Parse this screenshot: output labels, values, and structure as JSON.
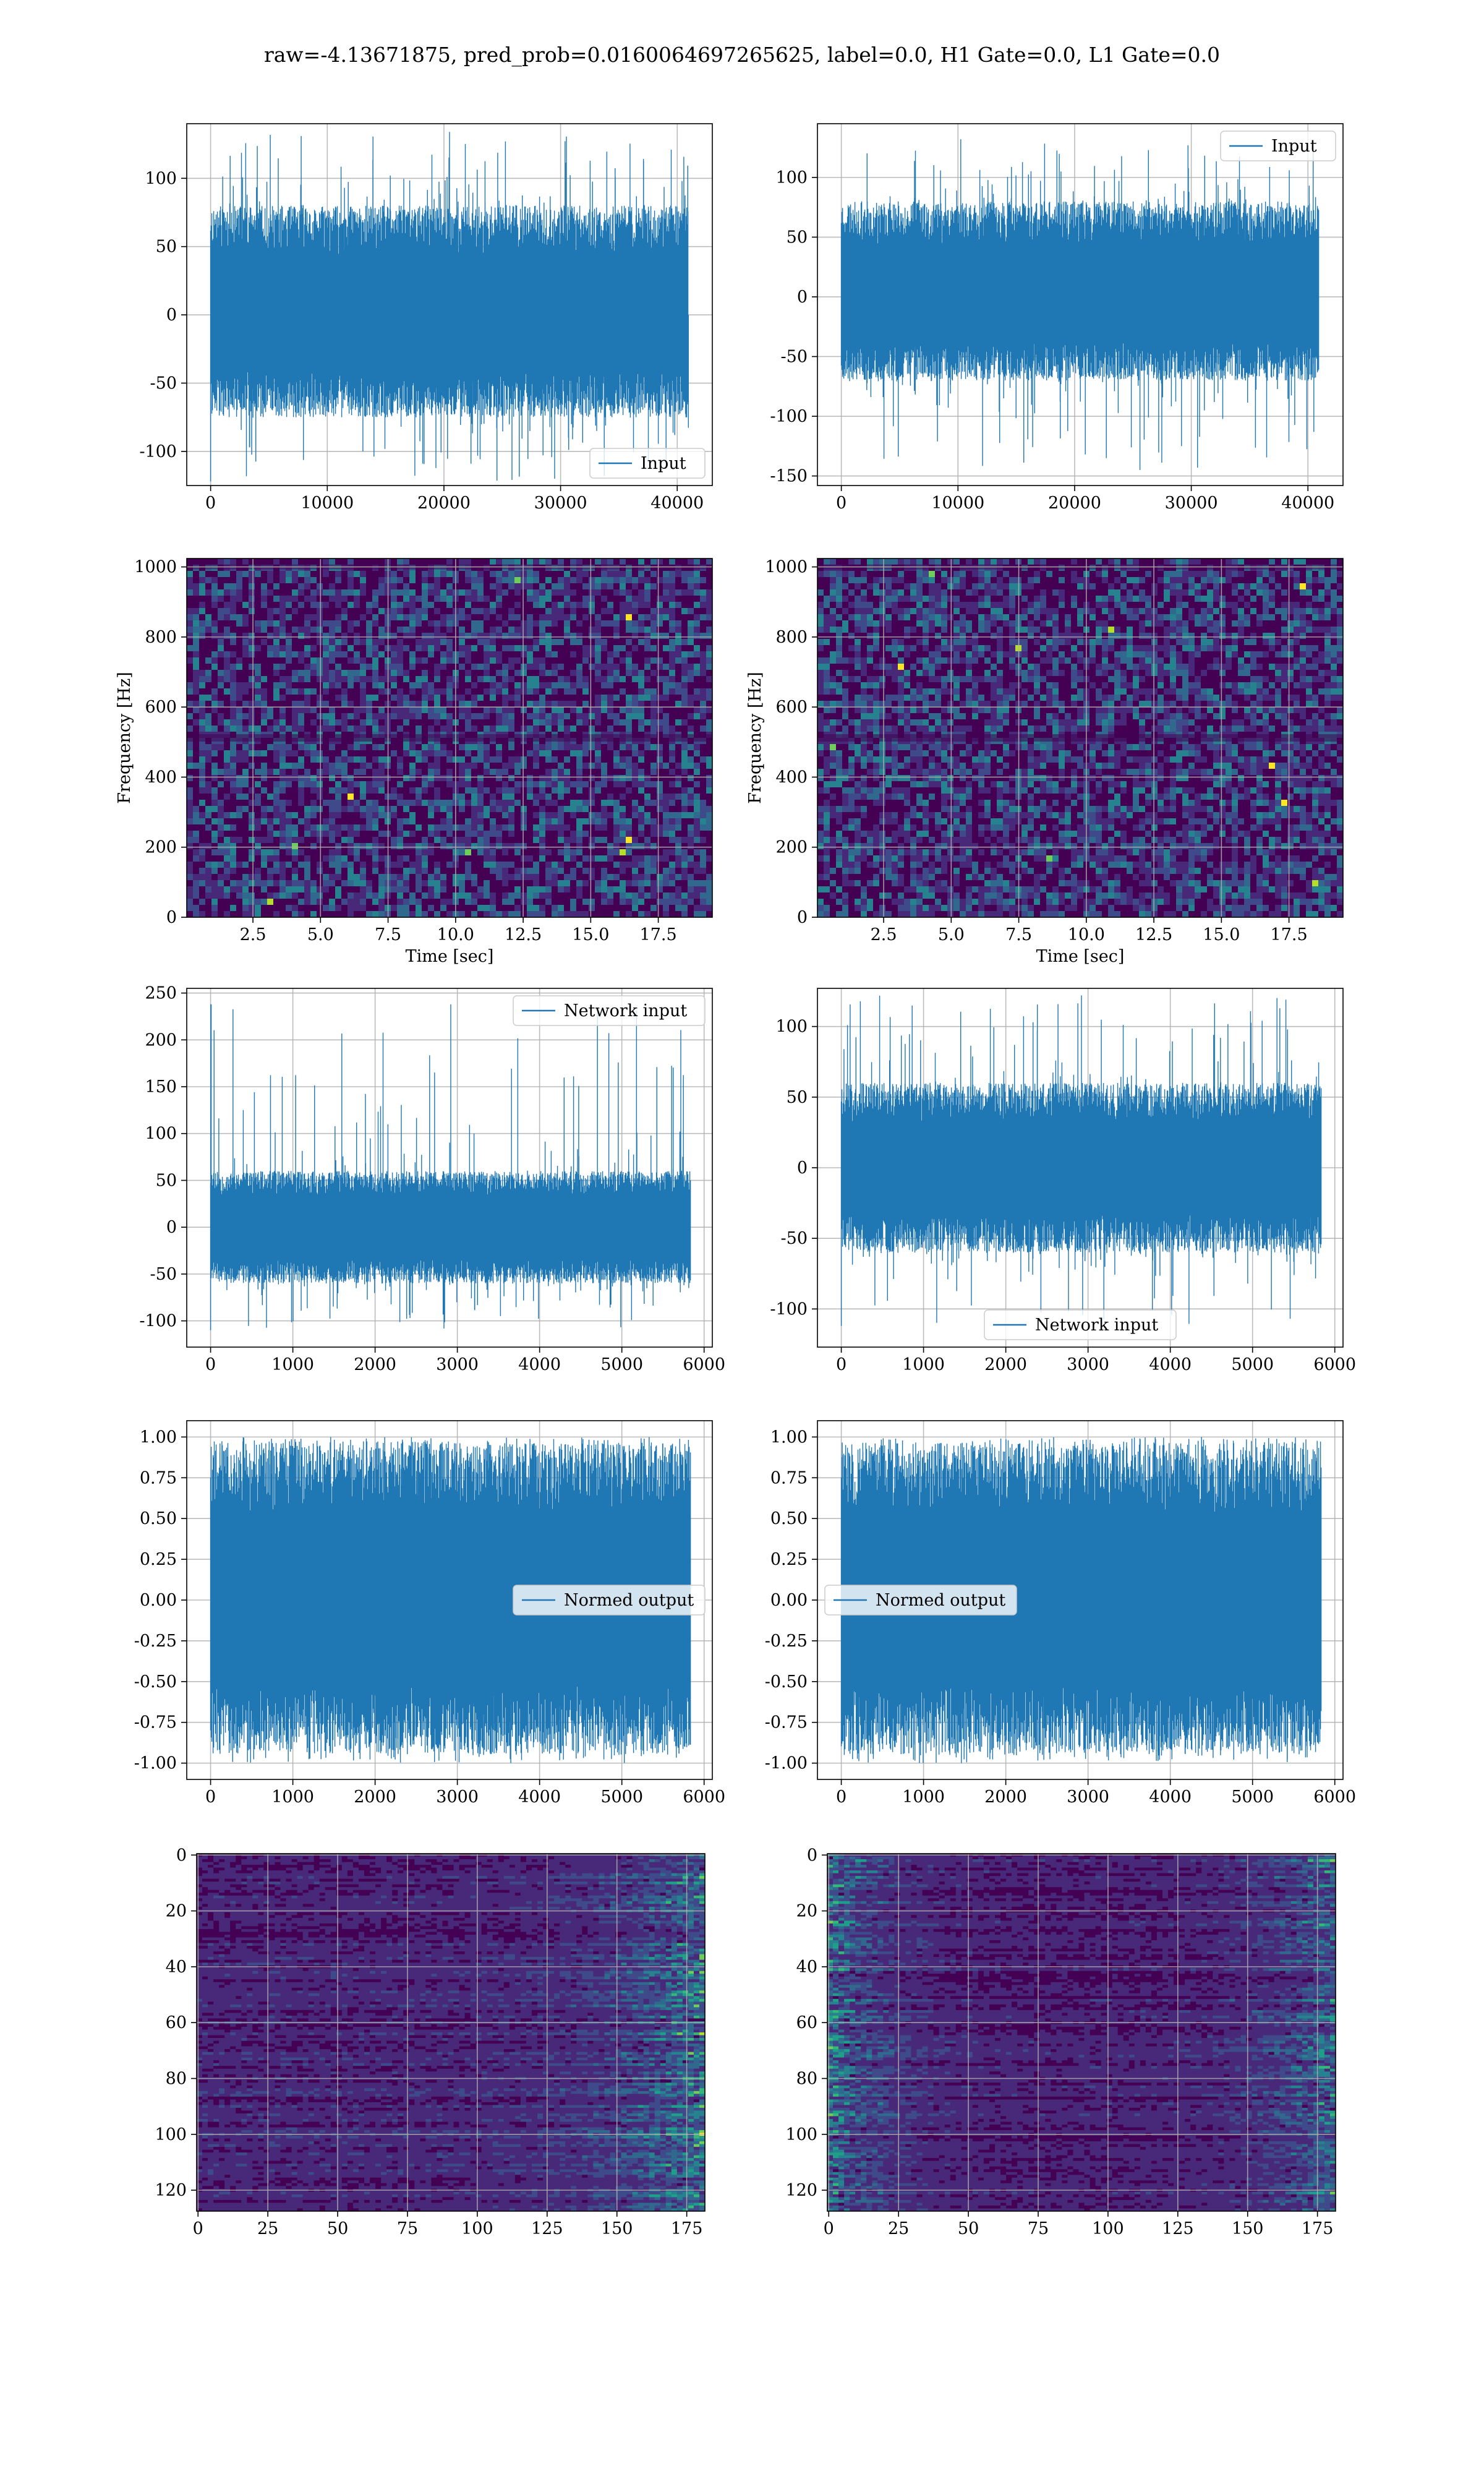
{
  "figure": {
    "suptitle": "raw=-4.13671875, pred_prob=0.0160064697265625, label=0.0, H1 Gate=0.0, L1 Gate=0.0"
  },
  "colors": {
    "line": "#1f77b4",
    "grid": "#b0b0b0",
    "viridis": [
      "#440154",
      "#482878",
      "#3e4a89",
      "#31688e",
      "#26828e",
      "#1f9e89",
      "#35b779",
      "#6ece58",
      "#b5de2b",
      "#fde725"
    ]
  },
  "chart_data": [
    {
      "id": "r1c1",
      "type": "line",
      "title": "",
      "xlabel": "",
      "ylabel": "",
      "xlim": [
        -2048,
        43008
      ],
      "ylim": [
        -125,
        140
      ],
      "xticks": [
        0,
        10000,
        20000,
        30000,
        40000
      ],
      "yticks": [
        -100,
        -50,
        0,
        50,
        100
      ],
      "grid": true,
      "legend": {
        "label": "Input",
        "position": "lower-right"
      },
      "series": [
        {
          "name": "Input",
          "x_range": [
            0,
            40960
          ],
          "baseline": 0,
          "sigma": 25,
          "band": [
            -75,
            80
          ],
          "extreme": [
            -122,
            134
          ]
        }
      ]
    },
    {
      "id": "r1c2",
      "type": "line",
      "title": "",
      "xlabel": "",
      "ylabel": "",
      "xlim": [
        -2048,
        43008
      ],
      "ylim": [
        -158,
        145
      ],
      "xticks": [
        0,
        10000,
        20000,
        30000,
        40000
      ],
      "yticks": [
        -150,
        -100,
        -50,
        0,
        50,
        100
      ],
      "grid": true,
      "legend": {
        "label": "Input",
        "position": "upper-right"
      },
      "series": [
        {
          "name": "Input",
          "x_range": [
            0,
            40960
          ],
          "baseline": 0,
          "sigma": 25,
          "band": [
            -70,
            80
          ],
          "extreme": [
            -145,
            132
          ]
        }
      ]
    },
    {
      "id": "r2c1",
      "type": "heatmap",
      "title": "",
      "xlabel": "Time [sec]",
      "ylabel": "Frequency [Hz]",
      "xlim": [
        0.05,
        19.5
      ],
      "ylim": [
        0,
        1024
      ],
      "xticks": [
        "2.5",
        "5.0",
        "7.5",
        "10.0",
        "12.5",
        "15.0",
        "17.5"
      ],
      "yticks": [
        0,
        200,
        400,
        600,
        800,
        1000
      ],
      "grid": true,
      "description_range": "low-intensity noise spectrogram with sparse bright points"
    },
    {
      "id": "r2c2",
      "type": "heatmap",
      "title": "",
      "xlabel": "Time [sec]",
      "ylabel": "Frequency [Hz]",
      "xlim": [
        0.05,
        19.5
      ],
      "ylim": [
        0,
        1024
      ],
      "xticks": [
        "2.5",
        "5.0",
        "7.5",
        "10.0",
        "12.5",
        "15.0",
        "17.5"
      ],
      "yticks": [
        0,
        200,
        400,
        600,
        800,
        1000
      ],
      "grid": true
    },
    {
      "id": "r3c1",
      "type": "line",
      "title": "",
      "xlabel": "",
      "ylabel": "",
      "xlim": [
        -290,
        6100
      ],
      "ylim": [
        -128,
        255
      ],
      "xticks": [
        0,
        1000,
        2000,
        3000,
        4000,
        5000,
        6000
      ],
      "yticks": [
        -100,
        -50,
        0,
        50,
        100,
        150,
        200,
        250
      ],
      "grid": true,
      "legend": {
        "label": "Network input",
        "position": "upper-right"
      },
      "series": [
        {
          "name": "Network input",
          "x_range": [
            0,
            5840
          ],
          "baseline": 0,
          "sigma": 22,
          "band": [
            -60,
            60
          ],
          "extreme": [
            -110,
            238
          ]
        }
      ]
    },
    {
      "id": "r3c2",
      "type": "line",
      "title": "",
      "xlabel": "",
      "ylabel": "",
      "xlim": [
        -290,
        6100
      ],
      "ylim": [
        -127,
        127
      ],
      "xticks": [
        0,
        1000,
        2000,
        3000,
        4000,
        5000,
        6000
      ],
      "yticks": [
        -100,
        -50,
        0,
        50,
        100
      ],
      "grid": true,
      "legend": {
        "label": "Network input",
        "position": "lower-center"
      },
      "series": [
        {
          "name": "Network input",
          "x_range": [
            0,
            5840
          ],
          "baseline": 0,
          "sigma": 26,
          "band": [
            -60,
            60
          ],
          "extreme": [
            -112,
            122
          ]
        }
      ]
    },
    {
      "id": "r4c1",
      "type": "line",
      "title": "",
      "xlabel": "",
      "ylabel": "",
      "xlim": [
        -290,
        6100
      ],
      "ylim": [
        -1.1,
        1.1
      ],
      "xticks": [
        0,
        1000,
        2000,
        3000,
        4000,
        5000,
        6000
      ],
      "yticks": [
        "-1.00",
        "-0.75",
        "-0.50",
        "-0.25",
        "0.00",
        "0.25",
        "0.50",
        "0.75",
        "1.00"
      ],
      "grid": true,
      "legend": {
        "label": "Normed output",
        "position": "center-right"
      },
      "series": [
        {
          "name": "Normed output",
          "x_range": [
            0,
            5840
          ],
          "baseline": 0,
          "band": [
            -0.94,
            0.96
          ],
          "extreme": [
            -1.0,
            1.0
          ]
        }
      ]
    },
    {
      "id": "r4c2",
      "type": "line",
      "title": "",
      "xlabel": "",
      "ylabel": "",
      "xlim": [
        -290,
        6100
      ],
      "ylim": [
        -1.1,
        1.1
      ],
      "xticks": [
        0,
        1000,
        2000,
        3000,
        4000,
        5000,
        6000
      ],
      "yticks": [
        "-1.00",
        "-0.75",
        "-0.50",
        "-0.25",
        "0.00",
        "0.25",
        "0.50",
        "0.75",
        "1.00"
      ],
      "grid": true,
      "legend": {
        "label": "Normed output",
        "position": "center-left"
      },
      "series": [
        {
          "name": "Normed output",
          "x_range": [
            0,
            5840
          ],
          "baseline": 0,
          "band": [
            -0.94,
            0.96
          ],
          "extreme": [
            -1.0,
            1.0
          ]
        }
      ]
    },
    {
      "id": "r5c1",
      "type": "heatmap",
      "title": "",
      "xlabel": "",
      "ylabel": "",
      "xlim": [
        -0.5,
        181.5
      ],
      "ylim": [
        127.5,
        -0.5
      ],
      "xticks": [
        0,
        25,
        50,
        75,
        100,
        125,
        150,
        175
      ],
      "yticks": [
        0,
        20,
        40,
        60,
        80,
        100,
        120
      ],
      "grid": true
    },
    {
      "id": "r5c2",
      "type": "heatmap",
      "title": "",
      "xlabel": "",
      "ylabel": "",
      "xlim": [
        -0.5,
        181.5
      ],
      "ylim": [
        127.5,
        -0.5
      ],
      "xticks": [
        0,
        25,
        50,
        75,
        100,
        125,
        150,
        175
      ],
      "yticks": [
        0,
        20,
        40,
        60,
        80,
        100,
        120
      ],
      "grid": true
    }
  ]
}
